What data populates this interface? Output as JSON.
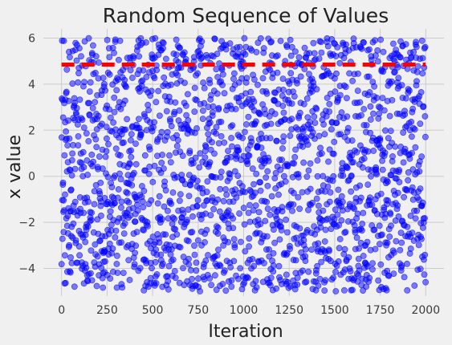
{
  "chart_data": {
    "type": "scatter",
    "title": "Random Sequence of Values",
    "xlabel": "Iteration",
    "ylabel": "x value",
    "xlim": [
      -100,
      2100
    ],
    "ylim": [
      -5.2,
      6.4
    ],
    "xticks": [
      0,
      250,
      500,
      750,
      1000,
      1250,
      1500,
      1750,
      2000
    ],
    "yticks": [
      -4,
      -2,
      0,
      2,
      4,
      6
    ],
    "grid": true,
    "series": [
      {
        "marker": "circle",
        "color": "#0000ff",
        "alpha": 0.5,
        "x_range": [
          0,
          1999
        ],
        "point_count": 2000,
        "y_distribution": "uniform",
        "y_range": [
          -5,
          6
        ]
      }
    ],
    "reference_line": {
      "orientation": "horizontal",
      "y": 4.85,
      "style": "dashed",
      "color": "#ff0000"
    }
  }
}
